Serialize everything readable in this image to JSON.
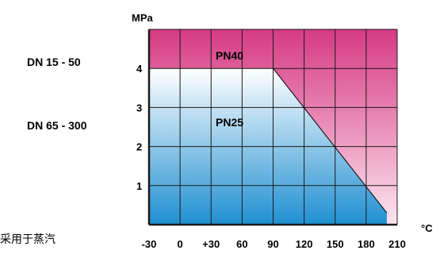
{
  "chart_data": {
    "type": "area",
    "title": "",
    "ylabel": "MPa",
    "xunit": "°C",
    "x_ticks": [
      "-30",
      "0",
      "+30",
      "60",
      "90",
      "120",
      "150",
      "180",
      "210"
    ],
    "y_ticks": [
      "1",
      "2",
      "3",
      "4"
    ],
    "xlim": [
      -30,
      210
    ],
    "ylim": [
      0,
      5
    ],
    "grid": true,
    "series": [
      {
        "name": "PN40",
        "x": [
          -30,
          90,
          200,
          210
        ],
        "y": [
          5,
          5,
          5,
          5
        ]
      },
      {
        "name": "PN25",
        "x": [
          -30,
          90,
          200
        ],
        "y": [
          4,
          4,
          0.3
        ]
      }
    ],
    "side_labels": [
      {
        "text": "DN 15 - 50",
        "series": "PN40"
      },
      {
        "text": "DN 65 - 300",
        "series": "PN25"
      }
    ],
    "colors": {
      "pn40_top": "#d63a83",
      "pn40_bottom": "#fde6f0",
      "pn25_top": "#ffffff",
      "pn25_bottom": "#1f8fd2",
      "grid": "#1a1a1a"
    }
  },
  "footer_note": "采用于蒸汽"
}
